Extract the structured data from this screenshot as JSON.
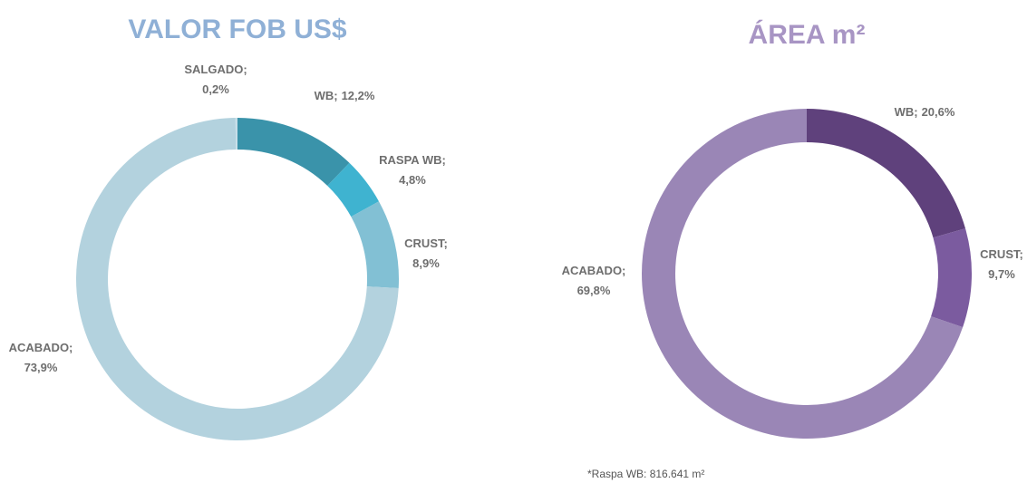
{
  "chart_data": [
    {
      "type": "pie",
      "title": "VALOR FOB US$",
      "categories": [
        "WB;",
        "RASPA WB;",
        "CRUST;",
        "ACABADO;",
        "SALGADO;"
      ],
      "values": [
        12.2,
        4.8,
        8.9,
        73.9,
        0.2
      ],
      "value_labels": [
        "12,2%",
        "4,8%",
        "8,9%",
        "73,9%",
        "0,2%"
      ],
      "colors": [
        "#3a93aa",
        "#3fb3d0",
        "#82c0d4",
        "#b3d2de",
        "#c6dee8"
      ]
    },
    {
      "type": "pie",
      "title": "ÁREA m²",
      "categories": [
        "WB;",
        "CRUST;",
        "ACABADO;"
      ],
      "values": [
        20.6,
        9.7,
        69.8
      ],
      "value_labels": [
        "20,6%",
        "9,7%",
        "69,8%"
      ],
      "colors": [
        "#5f417c",
        "#7b5b9f",
        "#9a86b6"
      ],
      "footnote": "*Raspa WB: 816.641 m²"
    }
  ]
}
